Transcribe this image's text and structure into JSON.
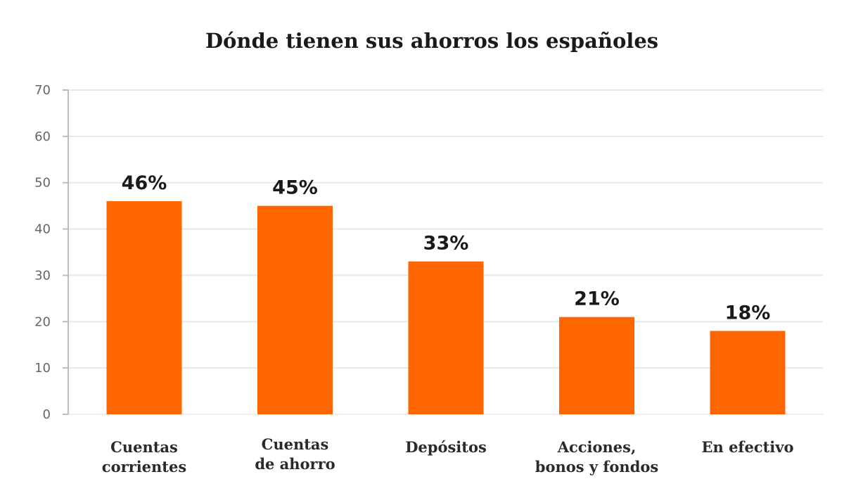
{
  "chart_data": {
    "type": "bar",
    "title": "Dónde tienen sus ahorros los españoles",
    "xlabel": "",
    "ylabel": "",
    "ylim": [
      0,
      70
    ],
    "yticks": [
      "0",
      "10",
      "20",
      "30",
      "40",
      "50",
      "60",
      "70"
    ],
    "ytick_values": [
      0,
      10,
      20,
      30,
      40,
      50,
      60,
      70
    ],
    "grid": true,
    "legend": "none",
    "categories": [
      [
        "Cuentas",
        "corrientes"
      ],
      [
        "Cuentas",
        "de ahorro"
      ],
      [
        "Depósitos"
      ],
      [
        "Acciones,",
        "bonos y fondos"
      ],
      [
        "En efectivo"
      ]
    ],
    "values": [
      46,
      45,
      33,
      21,
      18
    ],
    "data_labels": [
      "46%",
      "45%",
      "33%",
      "21%",
      "18%"
    ],
    "colors": {
      "bar": "#FF6600",
      "grid": "#e8e8e8",
      "axis": "#bdbdbd"
    }
  }
}
